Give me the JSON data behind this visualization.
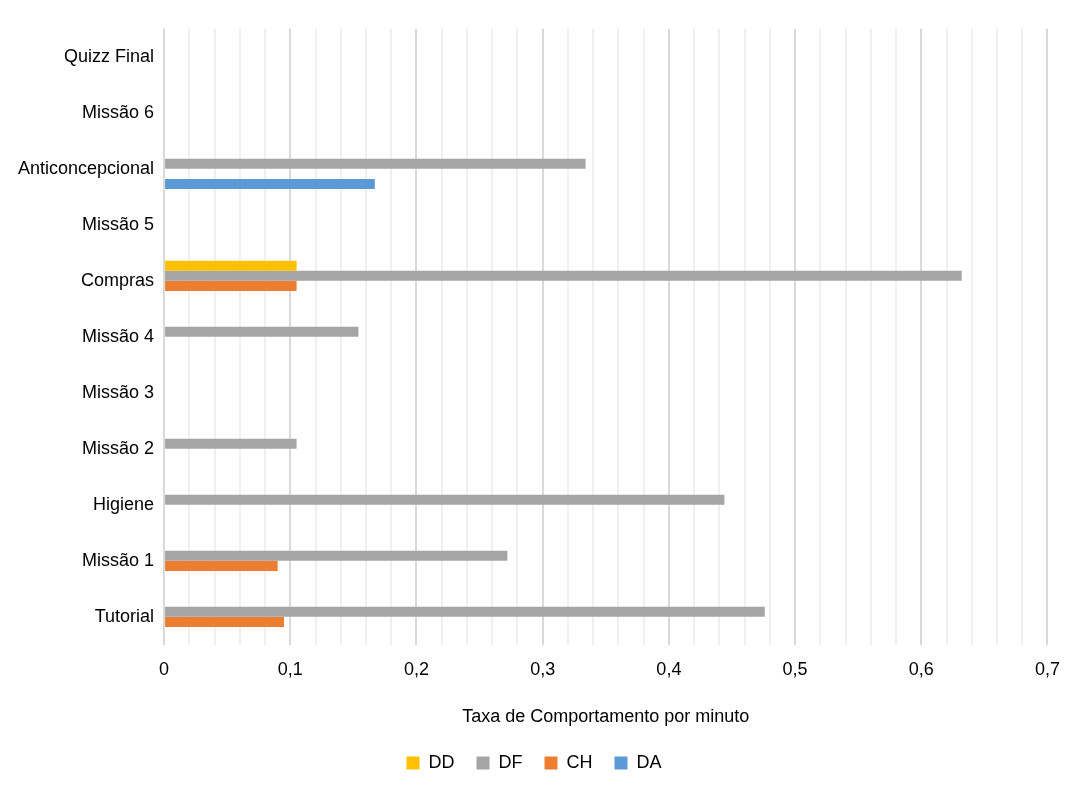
{
  "chart_data": {
    "type": "bar",
    "orientation": "horizontal",
    "xlabel": "Taxa de Comportamento por minuto",
    "categories": [
      "Quizz Final",
      "Missão 6",
      "Anticoncepcional",
      "Missão 5",
      "Compras",
      "Missão 4",
      "Missão 3",
      "Missão 2",
      "Higiene",
      "Missão 1",
      "Tutorial"
    ],
    "series": [
      {
        "name": "DD",
        "color": "#ffc000",
        "values": [
          null,
          null,
          null,
          null,
          0.105,
          null,
          null,
          null,
          null,
          null,
          null
        ]
      },
      {
        "name": "DF",
        "color": "#a5a5a5",
        "values": [
          null,
          null,
          0.334,
          null,
          0.632,
          0.154,
          null,
          0.105,
          0.444,
          0.272,
          0.476
        ]
      },
      {
        "name": "CH",
        "color": "#ed7d31",
        "values": [
          null,
          null,
          null,
          null,
          0.105,
          null,
          null,
          null,
          null,
          0.09,
          0.095
        ]
      },
      {
        "name": "DA",
        "color": "#5b9bd5",
        "values": [
          null,
          null,
          0.167,
          null,
          null,
          null,
          null,
          null,
          null,
          null,
          null
        ]
      }
    ],
    "xlim": [
      0,
      0.7
    ],
    "xticks": [
      0,
      {
        "value": 0.02,
        "label": null
      },
      {
        "value": 0.04,
        "label": null
      },
      {
        "value": 0.06,
        "label": null
      },
      {
        "value": 0.08,
        "label": null
      },
      {
        "value": 0.1,
        "label": "0,1"
      },
      {
        "value": 0.12,
        "label": null
      },
      {
        "value": 0.14,
        "label": null
      },
      {
        "value": 0.16,
        "label": null
      },
      {
        "value": 0.18,
        "label": null
      },
      {
        "value": 0.2,
        "label": "0,2"
      },
      {
        "value": 0.22,
        "label": null
      },
      {
        "value": 0.24,
        "label": null
      },
      {
        "value": 0.26,
        "label": null
      },
      {
        "value": 0.28,
        "label": null
      },
      {
        "value": 0.3,
        "label": "0,3"
      },
      {
        "value": 0.32,
        "label": null
      },
      {
        "value": 0.34,
        "label": null
      },
      {
        "value": 0.36,
        "label": null
      },
      {
        "value": 0.38,
        "label": null
      },
      {
        "value": 0.4,
        "label": "0,4"
      },
      {
        "value": 0.42,
        "label": null
      },
      {
        "value": 0.44,
        "label": null
      },
      {
        "value": 0.46,
        "label": null
      },
      {
        "value": 0.48,
        "label": null
      },
      {
        "value": 0.5,
        "label": "0,5"
      },
      {
        "value": 0.52,
        "label": null
      },
      {
        "value": 0.54,
        "label": null
      },
      {
        "value": 0.56,
        "label": null
      },
      {
        "value": 0.58,
        "label": null
      },
      {
        "value": 0.6,
        "label": "0,6"
      },
      {
        "value": 0.62,
        "label": null
      },
      {
        "value": 0.64,
        "label": null
      },
      {
        "value": 0.66,
        "label": null
      },
      {
        "value": 0.68,
        "label": null
      },
      {
        "value": 0.7,
        "label": "0,7"
      }
    ],
    "grid": "x",
    "legend": "bottom"
  }
}
